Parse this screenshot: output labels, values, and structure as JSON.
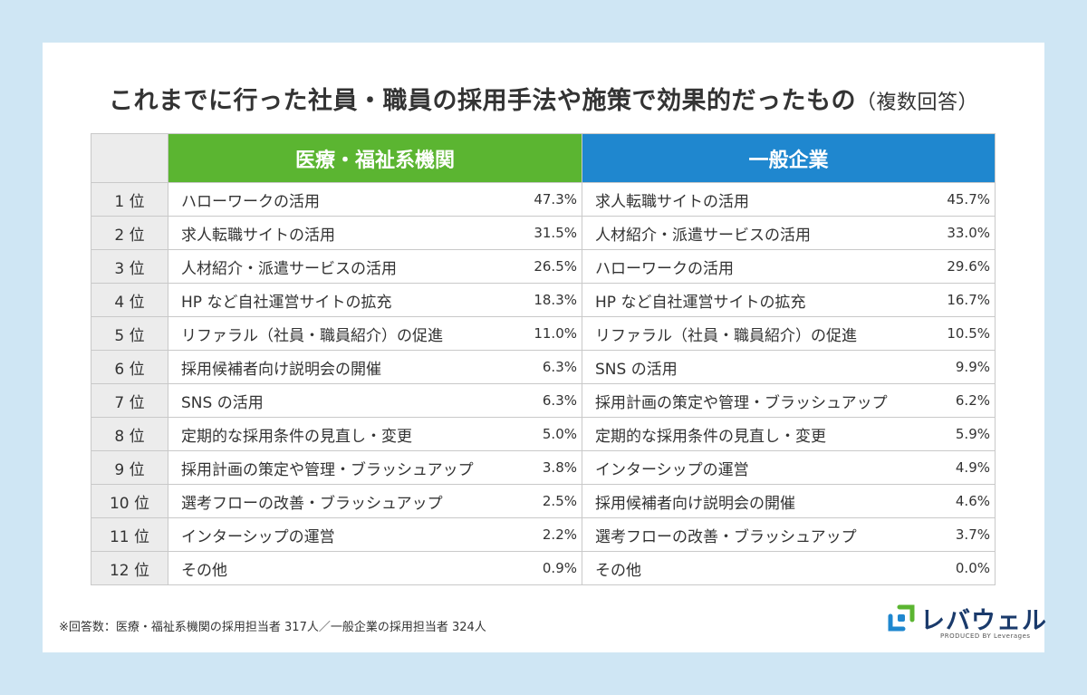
{
  "title": "これまでに行った社員・職員の採用手法や施策で効果的だったもの",
  "title_sub": "（複数回答）",
  "header": {
    "medical": "医療・福祉系機関",
    "general": "一般企業"
  },
  "rows": [
    {
      "rank": "1 位",
      "medical": {
        "label": "ハローワークの活用",
        "pct": "47.3%"
      },
      "general": {
        "label": "求人転職サイトの活用",
        "pct": "45.7%"
      }
    },
    {
      "rank": "2 位",
      "medical": {
        "label": "求人転職サイトの活用",
        "pct": "31.5%"
      },
      "general": {
        "label": "人材紹介・派遣サービスの活用",
        "pct": "33.0%"
      }
    },
    {
      "rank": "3 位",
      "medical": {
        "label": "人材紹介・派遣サービスの活用",
        "pct": "26.5%"
      },
      "general": {
        "label": "ハローワークの活用",
        "pct": "29.6%"
      }
    },
    {
      "rank": "4 位",
      "medical": {
        "label": "HP など自社運営サイトの拡充",
        "pct": "18.3%"
      },
      "general": {
        "label": "HP など自社運営サイトの拡充",
        "pct": "16.7%"
      }
    },
    {
      "rank": "5 位",
      "medical": {
        "label": "リファラル（社員・職員紹介）の促進",
        "pct": "11.0%"
      },
      "general": {
        "label": "リファラル（社員・職員紹介）の促進",
        "pct": "10.5%"
      }
    },
    {
      "rank": "6 位",
      "medical": {
        "label": "採用候補者向け説明会の開催",
        "pct": "6.3%"
      },
      "general": {
        "label": "SNS の活用",
        "pct": "9.9%"
      }
    },
    {
      "rank": "7 位",
      "medical": {
        "label": "SNS の活用",
        "pct": "6.3%"
      },
      "general": {
        "label": "採用計画の策定や管理・ブラッシュアップ",
        "pct": "6.2%"
      }
    },
    {
      "rank": "8 位",
      "medical": {
        "label": "定期的な採用条件の見直し・変更",
        "pct": "5.0%"
      },
      "general": {
        "label": "定期的な採用条件の見直し・変更",
        "pct": "5.9%"
      }
    },
    {
      "rank": "9 位",
      "medical": {
        "label": "採用計画の策定や管理・ブラッシュアップ",
        "pct": "3.8%"
      },
      "general": {
        "label": "インターシップの運営",
        "pct": "4.9%"
      }
    },
    {
      "rank": "10 位",
      "medical": {
        "label": "選考フローの改善・ブラッシュアップ",
        "pct": "2.5%"
      },
      "general": {
        "label": "採用候補者向け説明会の開催",
        "pct": "4.6%"
      }
    },
    {
      "rank": "11 位",
      "medical": {
        "label": "インターシップの運営",
        "pct": "2.2%"
      },
      "general": {
        "label": "選考フローの改善・ブラッシュアップ",
        "pct": "3.7%"
      }
    },
    {
      "rank": "12 位",
      "medical": {
        "label": "その他",
        "pct": "0.9%"
      },
      "general": {
        "label": "その他",
        "pct": "0.0%"
      }
    }
  ],
  "note": "※回答数：医療・福祉系機関の採用担当者 317人／一般企業の採用担当者 324人",
  "logo": {
    "name": "レバウェル",
    "tagline": "PRODUCED BY Leverages"
  },
  "colors": {
    "medical_header": "#5bb531",
    "general_header": "#1f87cf",
    "background": "#cfe6f4"
  },
  "chart_data": {
    "type": "table",
    "title": "これまでに行った社員・職員の採用手法や施策で効果的だったもの（複数回答）",
    "columns": [
      "医療・福祉系機関",
      "一般企業"
    ],
    "categories": [
      "1 位",
      "2 位",
      "3 位",
      "4 位",
      "5 位",
      "6 位",
      "7 位",
      "8 位",
      "9 位",
      "10 位",
      "11 位",
      "12 位"
    ],
    "series": [
      {
        "name": "医療・福祉系機関",
        "labels": [
          "ハローワークの活用",
          "求人転職サイトの活用",
          "人材紹介・派遣サービスの活用",
          "HP など自社運営サイトの拡充",
          "リファラル（社員・職員紹介）の促進",
          "採用候補者向け説明会の開催",
          "SNS の活用",
          "定期的な採用条件の見直し・変更",
          "採用計画の策定や管理・ブラッシュアップ",
          "選考フローの改善・ブラッシュアップ",
          "インターシップの運営",
          "その他"
        ],
        "values": [
          47.3,
          31.5,
          26.5,
          18.3,
          11.0,
          6.3,
          6.3,
          5.0,
          3.8,
          2.5,
          2.2,
          0.9
        ]
      },
      {
        "name": "一般企業",
        "labels": [
          "求人転職サイトの活用",
          "人材紹介・派遣サービスの活用",
          "ハローワークの活用",
          "HP など自社運営サイトの拡充",
          "リファラル（社員・職員紹介）の促進",
          "SNS の活用",
          "採用計画の策定や管理・ブラッシュアップ",
          "定期的な採用条件の見直し・変更",
          "インターシップの運営",
          "採用候補者向け説明会の開催",
          "選考フローの改善・ブラッシュアップ",
          "その他"
        ],
        "values": [
          45.7,
          33.0,
          29.6,
          16.7,
          10.5,
          9.9,
          6.2,
          5.9,
          4.9,
          4.6,
          3.7,
          0.0
        ]
      }
    ]
  }
}
